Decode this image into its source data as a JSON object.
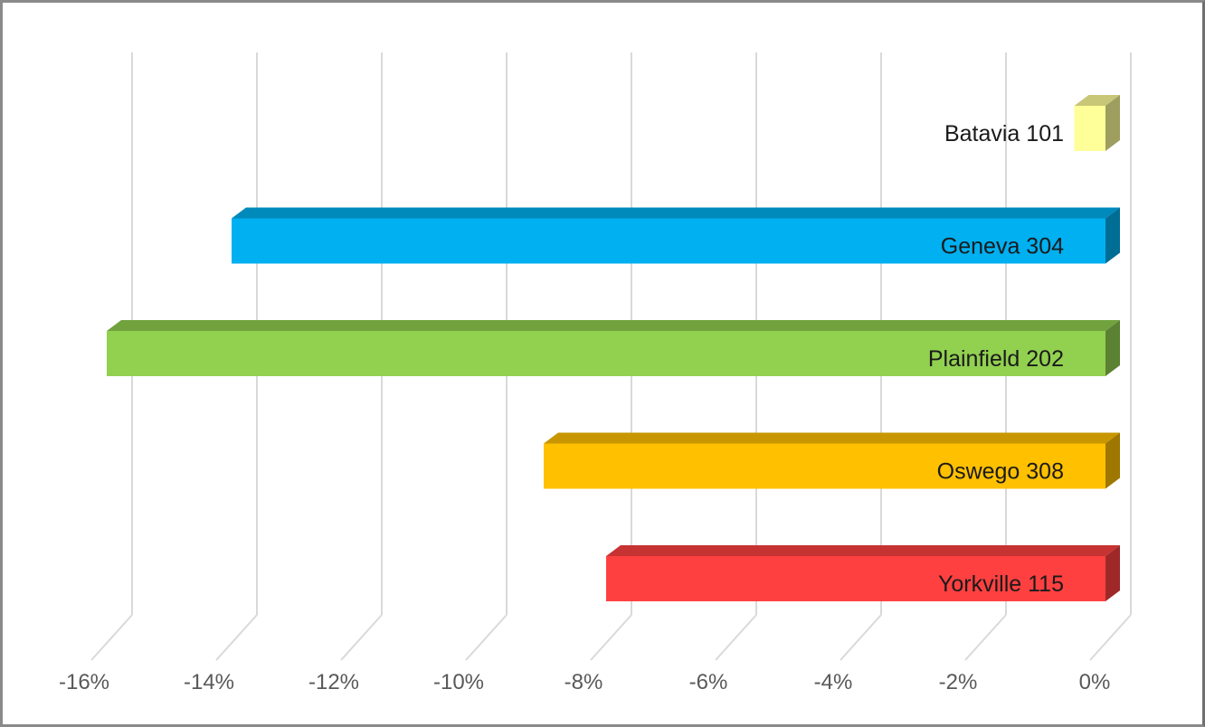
{
  "chart_data": {
    "type": "bar",
    "orientation": "horizontal",
    "style": "3d",
    "categories": [
      "Batavia 101",
      "Geneva 304",
      "Plainfield 202",
      "Oswego 308",
      "Yorkville 115"
    ],
    "values": [
      -0.5,
      -14.0,
      -16.0,
      -9.0,
      -8.0
    ],
    "colors": [
      "#FFFF99",
      "#00B0F0",
      "#92D050",
      "#FFC000",
      "#FF4040"
    ],
    "xlim": [
      -16,
      0
    ],
    "xticks": [
      -16,
      -14,
      -12,
      -10,
      -8,
      -6,
      -4,
      -2,
      0
    ],
    "xtick_labels": [
      "-16%",
      "-14%",
      "-12%",
      "-10%",
      "-8%",
      "-6%",
      "-4%",
      "-2%",
      "0%"
    ],
    "grid": true,
    "legend": "none",
    "title": "",
    "xlabel": "",
    "ylabel": ""
  }
}
